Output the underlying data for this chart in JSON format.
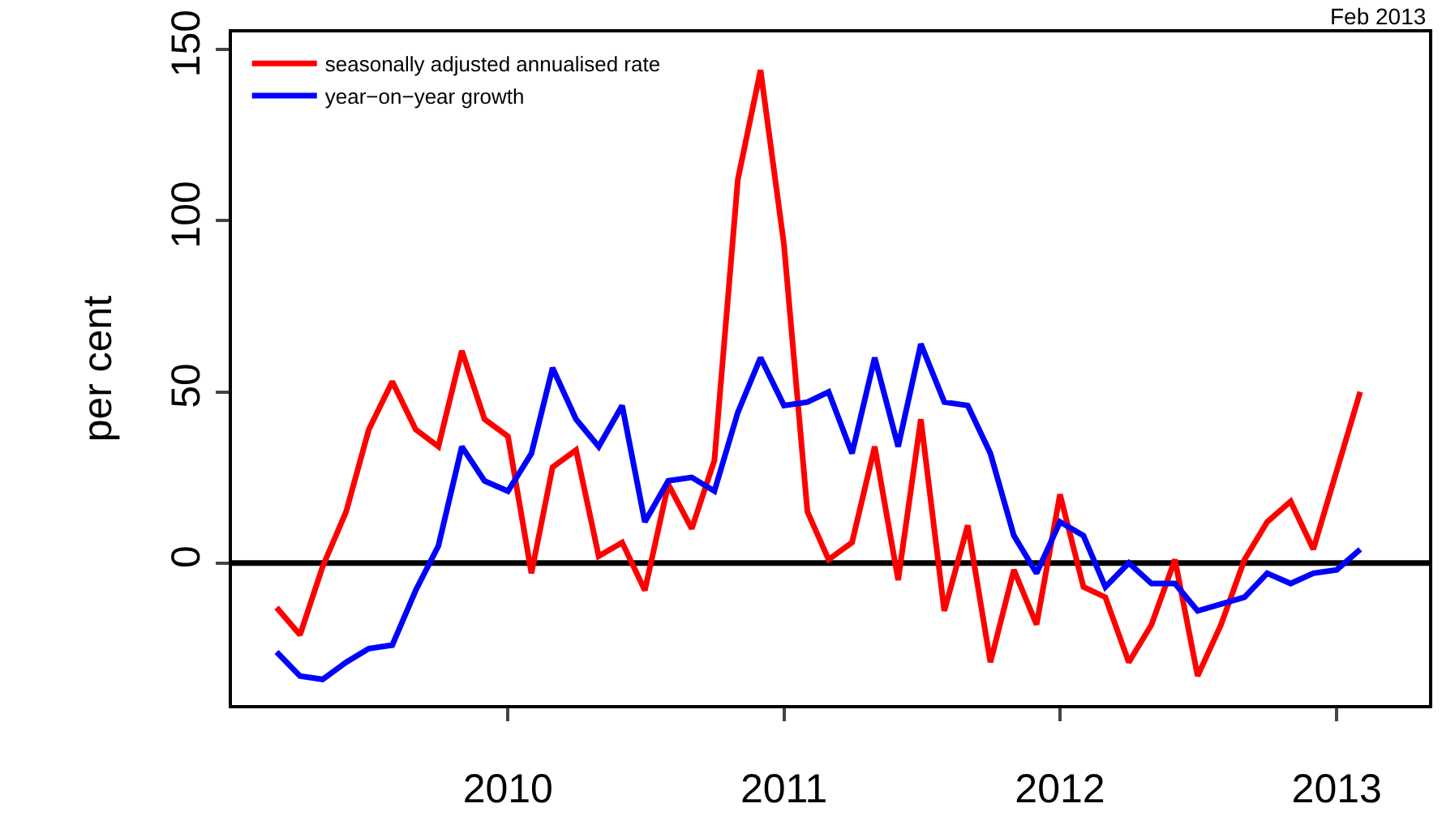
{
  "chart_data": {
    "type": "line",
    "ylabel": "per cent",
    "annotations": [
      "Feb 2013"
    ],
    "x": [
      "2009-03",
      "2009-04",
      "2009-05",
      "2009-06",
      "2009-07",
      "2009-08",
      "2009-09",
      "2009-10",
      "2009-11",
      "2009-12",
      "2010-01",
      "2010-02",
      "2010-03",
      "2010-04",
      "2010-05",
      "2010-06",
      "2010-07",
      "2010-08",
      "2010-09",
      "2010-10",
      "2010-11",
      "2010-12",
      "2011-01",
      "2011-02",
      "2011-03",
      "2011-04",
      "2011-05",
      "2011-06",
      "2011-07",
      "2011-08",
      "2011-09",
      "2011-10",
      "2011-11",
      "2011-12",
      "2012-01",
      "2012-02",
      "2012-03",
      "2012-04",
      "2012-05",
      "2012-06",
      "2012-07",
      "2012-08",
      "2012-09",
      "2012-10",
      "2012-11",
      "2012-12",
      "2013-01",
      "2013-02"
    ],
    "series": [
      {
        "name": "seasonally adjusted annualised rate",
        "color": "#ff0000",
        "values": [
          -13,
          -21,
          -1,
          15,
          39,
          53,
          39,
          34,
          62,
          42,
          37,
          -3,
          28,
          33,
          2,
          6,
          -8,
          23,
          10,
          30,
          112,
          144,
          93,
          15,
          1,
          6,
          34,
          -5,
          42,
          -14,
          11,
          -29,
          -2,
          -18,
          20,
          -7,
          -10,
          -29,
          -18,
          1,
          -33,
          -18,
          1,
          12,
          18,
          4,
          27,
          50
        ]
      },
      {
        "name": "year−on−year growth",
        "color": "#0000ff",
        "values": [
          -26,
          -33,
          -34,
          -29,
          -25,
          -24,
          -8,
          5,
          34,
          24,
          21,
          32,
          57,
          42,
          34,
          46,
          12,
          24,
          25,
          21,
          44,
          60,
          46,
          47,
          50,
          32,
          60,
          34,
          64,
          47,
          46,
          32,
          8,
          -3,
          12,
          8,
          -7,
          0,
          -6,
          -6,
          -14,
          -12,
          -10,
          -3,
          -6,
          -3,
          -2,
          4
        ]
      }
    ],
    "xlim": [
      "2009-01-01",
      "2013-05-03"
    ],
    "xticks": [
      {
        "value": "2010-01",
        "label": "2010"
      },
      {
        "value": "2011-01",
        "label": "2011"
      },
      {
        "value": "2012-01",
        "label": "2012"
      },
      {
        "value": "2013-01",
        "label": "2013"
      }
    ],
    "ylim": [
      -41.5,
      155
    ],
    "yticks": [
      0,
      50,
      100,
      150
    ],
    "ref_lines": [
      {
        "axis": "y",
        "value": 0,
        "color": "#000000"
      }
    ],
    "grid": false,
    "legend": "top left",
    "line_style": "solid",
    "marker": "none"
  }
}
